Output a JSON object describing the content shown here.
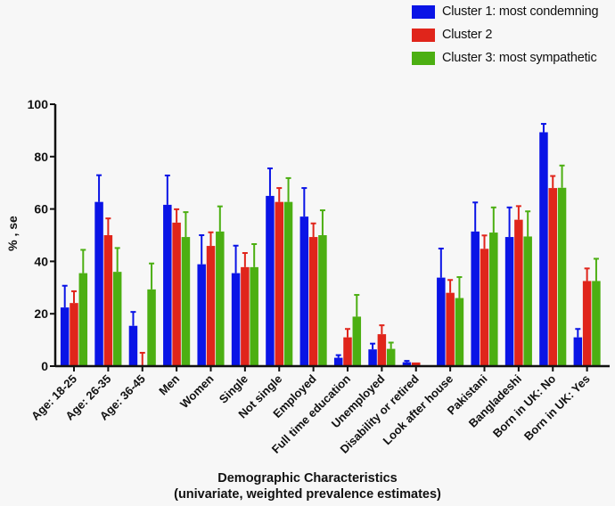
{
  "chart_data": {
    "type": "bar",
    "title": "",
    "xlabel": "Demographic Characteristics",
    "xlabel_sub": "(univariate, weighted prevalence estimates)",
    "ylabel": "% , se",
    "ylim": [
      0,
      100
    ],
    "yticks": [
      0,
      20,
      40,
      60,
      80,
      100
    ],
    "grid": false,
    "legend_position": "top-right",
    "categories": [
      "Age: 18-25",
      "Age: 26-35",
      "Age: 36-45",
      "Men",
      "Women",
      "Single",
      "Not single",
      "Employed",
      "Full time education",
      "Unemployed",
      "Disability or retired",
      "Look after house",
      "Pakistani",
      "Bangladeshi",
      "Born in UK: No",
      "Born in UK: Yes"
    ],
    "series": [
      {
        "name": "Cluster 1: most condemning",
        "color": "#0a14e6",
        "values": [
          22.4,
          62.7,
          15.4,
          61.6,
          38.9,
          35.5,
          65.0,
          57.1,
          3.2,
          6.4,
          1.5,
          33.8,
          51.4,
          49.3,
          89.3,
          11.0
        ],
        "upper_error": [
          30.7,
          72.9,
          20.7,
          72.8,
          50.0,
          46.0,
          75.5,
          68.0,
          4.2,
          8.6,
          2.0,
          44.9,
          62.5,
          60.6,
          92.5,
          14.2
        ]
      },
      {
        "name": "Cluster 2",
        "color": "#e0251b",
        "values": [
          24.1,
          50.0,
          0.3,
          54.8,
          45.9,
          37.8,
          62.7,
          49.3,
          11.0,
          12.2,
          1.4,
          28.0,
          44.8,
          55.9,
          68.0,
          32.5
        ],
        "upper_error": [
          28.6,
          56.4,
          5.1,
          59.9,
          51.1,
          43.2,
          68.0,
          54.5,
          14.2,
          15.6,
          1.4,
          32.9,
          49.9,
          61.1,
          72.6,
          37.3
        ]
      },
      {
        "name": "Cluster 3: most sympathetic",
        "color": "#4caf12",
        "values": [
          35.5,
          36.0,
          29.3,
          49.3,
          51.4,
          37.8,
          62.7,
          50.0,
          18.9,
          6.6,
          0.0,
          26.0,
          51.0,
          49.5,
          68.1,
          32.5
        ],
        "upper_error": [
          44.4,
          45.1,
          39.2,
          58.8,
          61.0,
          46.6,
          71.8,
          59.5,
          27.2,
          9.0,
          0.0,
          34.0,
          60.6,
          59.1,
          76.6,
          41.0
        ]
      }
    ]
  }
}
